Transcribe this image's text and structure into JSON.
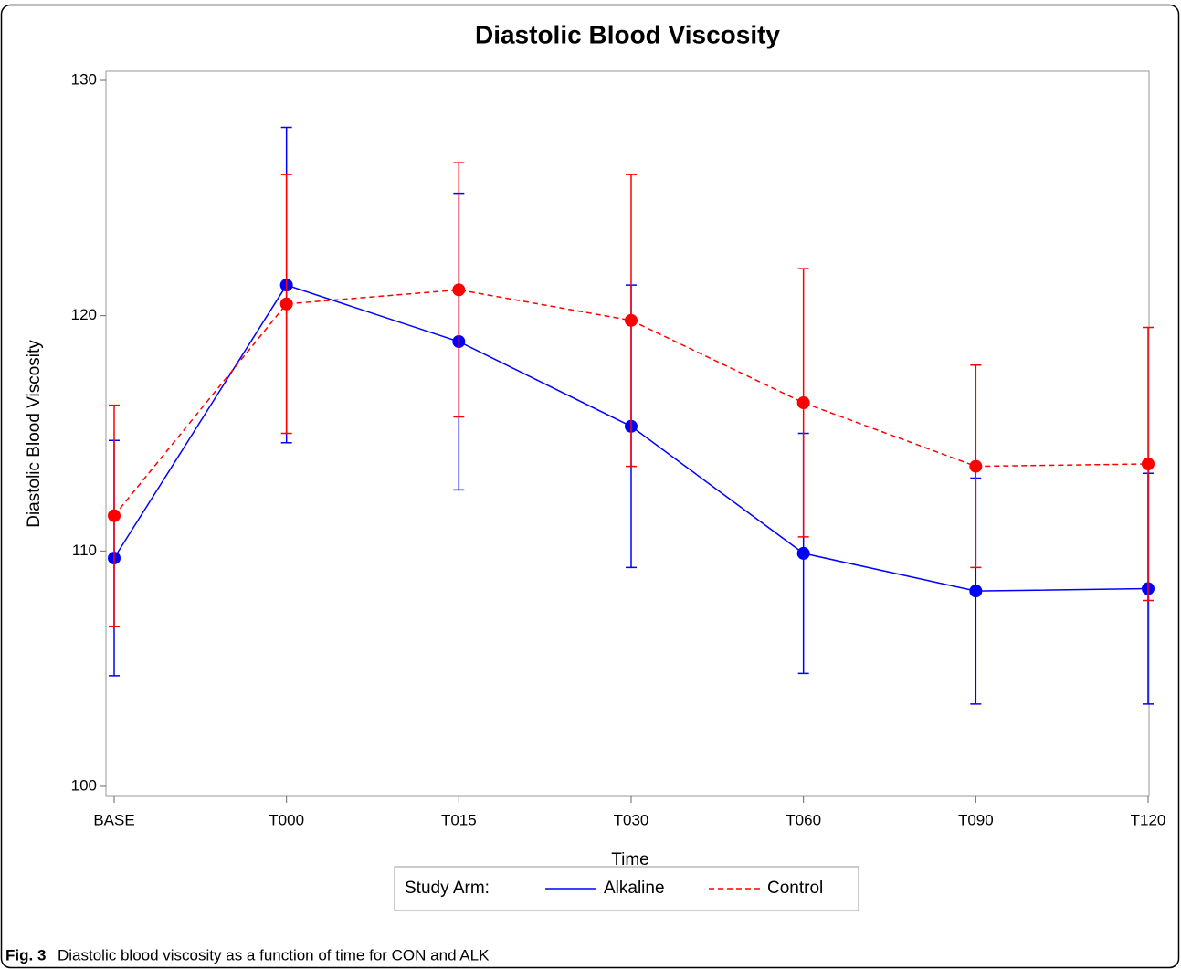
{
  "chart_data": {
    "type": "line",
    "title": "Diastolic Blood Viscosity",
    "xlabel": "Time",
    "ylabel": "Diastolic Blood Viscosity",
    "categories": [
      "BASE",
      "T000",
      "T015",
      "T030",
      "T060",
      "T090",
      "T120"
    ],
    "ylim": [
      100,
      130
    ],
    "yticks": [
      100,
      110,
      120,
      130
    ],
    "legend_title": "Study Arm:",
    "series": [
      {
        "name": "Alkaline",
        "color": "#0000ff",
        "dashed": false,
        "values": [
          109.7,
          121.3,
          118.9,
          115.3,
          109.9,
          108.3,
          108.4
        ],
        "errors": [
          5.0,
          6.7,
          6.3,
          6.0,
          5.1,
          4.8,
          4.9
        ]
      },
      {
        "name": "Control",
        "color": "#ff0000",
        "dashed": true,
        "values": [
          111.5,
          120.5,
          121.1,
          119.8,
          116.3,
          113.6,
          113.7
        ],
        "errors": [
          4.7,
          5.5,
          5.4,
          6.2,
          5.7,
          4.3,
          5.8
        ]
      }
    ],
    "caption": {
      "label": "Fig. 3",
      "text": "Diastolic blood viscosity as a function of time for CON and ALK"
    }
  }
}
